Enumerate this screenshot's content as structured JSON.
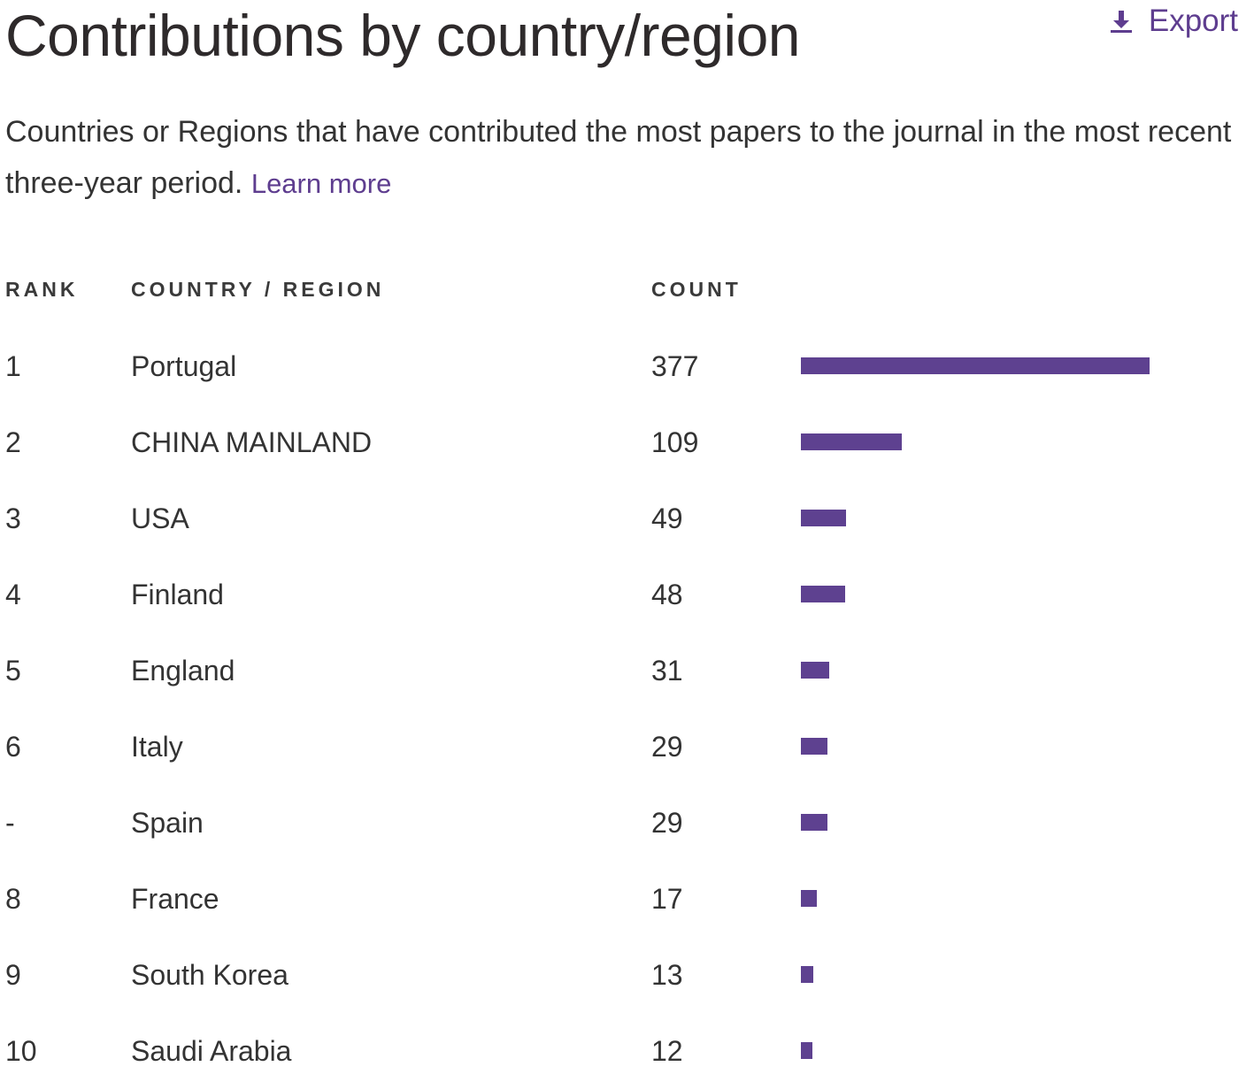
{
  "title": "Contributions by country/region",
  "export": {
    "label": "Export",
    "icon": "download-icon"
  },
  "description": {
    "text": "Countries or Regions that have contributed the most papers to the journal in the most recent three-year period.",
    "link": "Learn more"
  },
  "table": {
    "headers": {
      "rank": "RANK",
      "country": "COUNTRY / REGION",
      "count": "COUNT"
    },
    "rows": [
      {
        "rank": "1",
        "country": "Portugal",
        "count": "377"
      },
      {
        "rank": "2",
        "country": "CHINA MAINLAND",
        "count": "109"
      },
      {
        "rank": "3",
        "country": "USA",
        "count": "49"
      },
      {
        "rank": "4",
        "country": "Finland",
        "count": "48"
      },
      {
        "rank": "5",
        "country": "England",
        "count": "31"
      },
      {
        "rank": "6",
        "country": "Italy",
        "count": "29"
      },
      {
        "rank": "-",
        "country": "Spain",
        "count": "29"
      },
      {
        "rank": "8",
        "country": "France",
        "count": "17"
      },
      {
        "rank": "9",
        "country": "South Korea",
        "count": "13"
      },
      {
        "rank": "10",
        "country": "Saudi Arabia",
        "count": "12"
      }
    ]
  },
  "colors": {
    "accent": "#5e3d8f",
    "bar": "#5e4190",
    "text": "#333333"
  }
}
